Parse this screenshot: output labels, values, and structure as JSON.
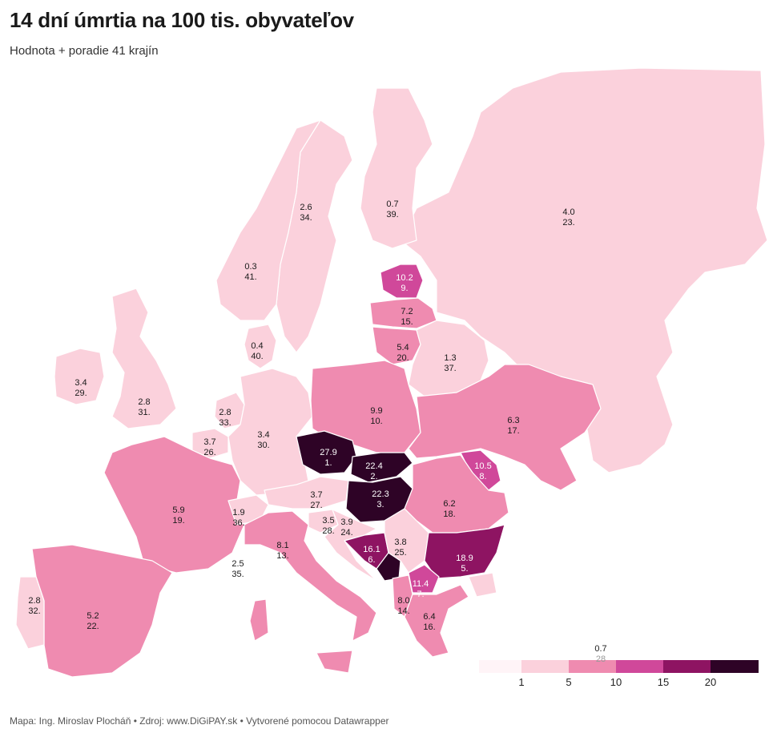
{
  "title": "14 dní úmrtia na 100 tis. obyvateľov",
  "subtitle": "Hodnota + poradie 41 krajín",
  "footer": "Mapa: Ing. Miroslav Plocháň • Zdroj: www.DiGiPAY.sk • Vytvorené pomocou Datawrapper",
  "colors": {
    "c1": "#fbd1dc",
    "c2": "#ef8bb0",
    "c3": "#d0489a",
    "c4": "#8e1462",
    "c5": "#2e0326",
    "border": "#ffffff"
  },
  "legend": {
    "ticks": [
      "1",
      "5",
      "10",
      "15",
      "20"
    ],
    "note_value": "0.7",
    "note_rank": "28"
  },
  "regions": [
    {
      "id": "russia",
      "value": "4.0",
      "rank": "23."
    },
    {
      "id": "finland",
      "value": "0.7",
      "rank": "39."
    },
    {
      "id": "sweden",
      "value": "2.6",
      "rank": "34."
    },
    {
      "id": "norway",
      "value": "0.3",
      "rank": "41."
    },
    {
      "id": "denmark",
      "value": "0.4",
      "rank": "40."
    },
    {
      "id": "estonia",
      "value": "10.2",
      "rank": "9."
    },
    {
      "id": "latvia",
      "value": "7.2",
      "rank": "15."
    },
    {
      "id": "lithuania",
      "value": "5.4",
      "rank": "20."
    },
    {
      "id": "belarus",
      "value": "1.3",
      "rank": "37."
    },
    {
      "id": "ireland",
      "value": "3.4",
      "rank": "29."
    },
    {
      "id": "uk",
      "value": "2.8",
      "rank": "31."
    },
    {
      "id": "netherlands",
      "value": "2.8",
      "rank": "33."
    },
    {
      "id": "belgium",
      "value": "3.7",
      "rank": "26."
    },
    {
      "id": "germany",
      "value": "3.4",
      "rank": "30."
    },
    {
      "id": "poland",
      "value": "9.9",
      "rank": "10."
    },
    {
      "id": "ukraine",
      "value": "6.3",
      "rank": "17."
    },
    {
      "id": "czechia",
      "value": "27.9",
      "rank": "1."
    },
    {
      "id": "slovakia",
      "value": "22.4",
      "rank": "2."
    },
    {
      "id": "hungary",
      "value": "22.3",
      "rank": "3."
    },
    {
      "id": "moldova",
      "value": "10.5",
      "rank": "8."
    },
    {
      "id": "romania",
      "value": "6.2",
      "rank": "18."
    },
    {
      "id": "france",
      "value": "5.9",
      "rank": "19."
    },
    {
      "id": "switzerland",
      "value": "1.9",
      "rank": "36."
    },
    {
      "id": "austria",
      "value": "3.7",
      "rank": "27."
    },
    {
      "id": "slovenia",
      "value": "3.5",
      "rank": "28."
    },
    {
      "id": "croatia",
      "value": "3.9",
      "rank": "24."
    },
    {
      "id": "italy",
      "value": "8.1",
      "rank": "13."
    },
    {
      "id": "monaco",
      "value": "2.5",
      "rank": "35."
    },
    {
      "id": "bosnia",
      "value": "16.1",
      "rank": "6."
    },
    {
      "id": "serbia",
      "value": "3.8",
      "rank": "25."
    },
    {
      "id": "bulgaria",
      "value": "18.9",
      "rank": "5."
    },
    {
      "id": "north_macedonia",
      "value": "11.4",
      "rank": "7."
    },
    {
      "id": "albania",
      "value": "8.0",
      "rank": "14."
    },
    {
      "id": "greece",
      "value": "6.4",
      "rank": "16."
    },
    {
      "id": "spain",
      "value": "5.2",
      "rank": "22."
    },
    {
      "id": "portugal",
      "value": "2.8",
      "rank": "32."
    }
  ]
}
